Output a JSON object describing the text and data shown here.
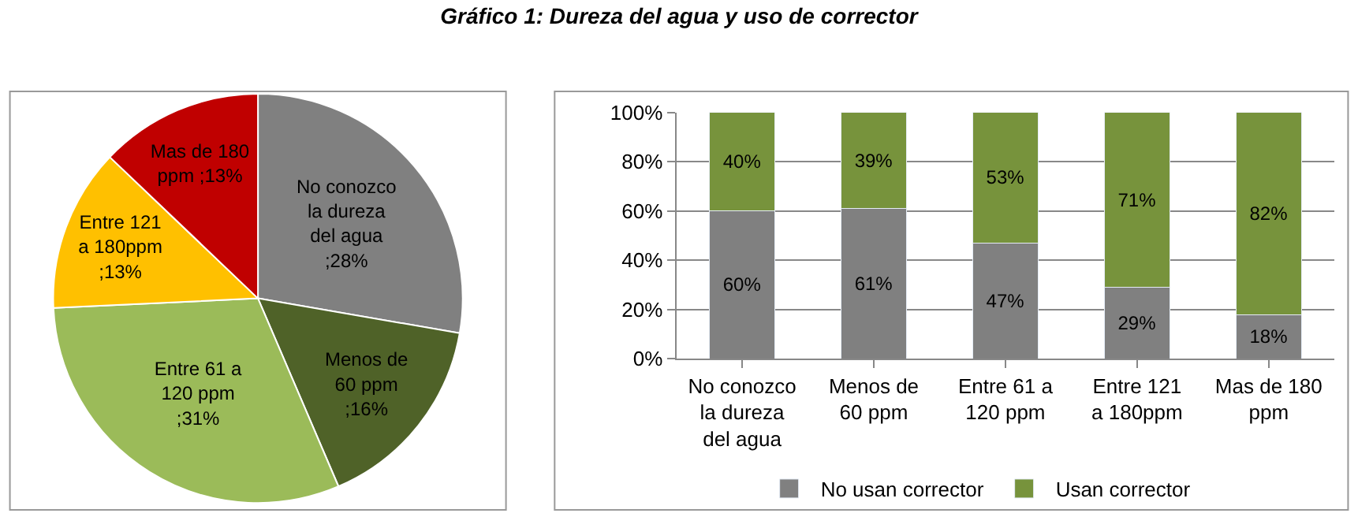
{
  "chart_data": [
    {
      "type": "pie",
      "categories": [
        "No conozco la dureza del agua",
        "Menos de 60 ppm",
        "Entre 61 a 120 ppm",
        "Entre 121 a 180ppm",
        "Mas de 180 ppm"
      ],
      "values": [
        28,
        16,
        31,
        13,
        13
      ],
      "value_labels": [
        ";28%",
        ";16%",
        ";31%",
        ";13%",
        ";13%"
      ],
      "colors": [
        "#808080",
        "#4f6228",
        "#9bbb59",
        "#ffc000",
        "#c00000"
      ],
      "legend": false
    },
    {
      "type": "bar",
      "stacked": true,
      "title": "Gráfico 1: Dureza del agua y uso de corrector",
      "categories": [
        "No conozco la dureza del agua",
        "Menos de 60 ppm",
        "Entre 61 a 120 ppm",
        "Entre 121 a 180ppm",
        "Mas de 180 ppm"
      ],
      "series": [
        {
          "name": "No usan corrector",
          "color": "#808080",
          "values": [
            60,
            61,
            47,
            29,
            18
          ],
          "value_labels": [
            "60%",
            "61%",
            "47%",
            "29%",
            "18%"
          ]
        },
        {
          "name": "Usan corrector",
          "color": "#77933c",
          "values": [
            40,
            39,
            53,
            71,
            82
          ],
          "value_labels": [
            "40%",
            "39%",
            "53%",
            "71%",
            "82%"
          ]
        }
      ],
      "ylim": [
        0,
        100
      ],
      "yticks": [
        {
          "value": 0,
          "label": "0%"
        },
        {
          "value": 20,
          "label": "20%"
        },
        {
          "value": 40,
          "label": "40%"
        },
        {
          "value": 60,
          "label": "60%"
        },
        {
          "value": 80,
          "label": "80%"
        },
        {
          "value": 100,
          "label": "100%"
        }
      ],
      "grid": "y",
      "legend": "bottom"
    }
  ]
}
